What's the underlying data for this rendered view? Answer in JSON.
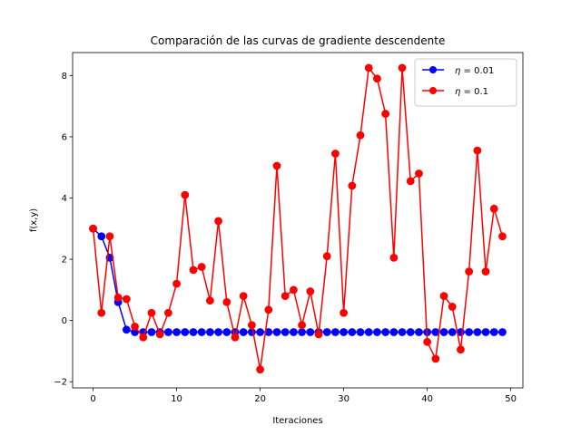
{
  "chart_data": {
    "type": "line",
    "title": "Comparación de las curvas de gradiente descendente",
    "xlabel": "Iteraciones",
    "ylabel": "f(x,y)",
    "xlim": [
      -2.45,
      51.45
    ],
    "ylim": [
      -2.2,
      8.75
    ],
    "xticks": [
      0,
      10,
      20,
      30,
      40,
      50
    ],
    "yticks": [
      -2,
      0,
      2,
      4,
      6,
      8
    ],
    "grid": false,
    "legend_position": "top-right",
    "series": [
      {
        "name": "η = 0.01",
        "legend_prefix": "η",
        "legend_suffix": " = 0.01",
        "color": "#0000ff",
        "x": [
          0,
          1,
          2,
          3,
          4,
          5,
          6,
          7,
          8,
          9,
          10,
          11,
          12,
          13,
          14,
          15,
          16,
          17,
          18,
          19,
          20,
          21,
          22,
          23,
          24,
          25,
          26,
          27,
          28,
          29,
          30,
          31,
          32,
          33,
          34,
          35,
          36,
          37,
          38,
          39,
          40,
          41,
          42,
          43,
          44,
          45,
          46,
          47,
          48,
          49
        ],
        "y": [
          3.0,
          2.75,
          2.05,
          0.6,
          -0.3,
          -0.38,
          -0.38,
          -0.38,
          -0.38,
          -0.38,
          -0.38,
          -0.38,
          -0.38,
          -0.38,
          -0.38,
          -0.38,
          -0.38,
          -0.38,
          -0.38,
          -0.38,
          -0.38,
          -0.38,
          -0.38,
          -0.38,
          -0.38,
          -0.38,
          -0.38,
          -0.38,
          -0.38,
          -0.38,
          -0.38,
          -0.38,
          -0.38,
          -0.38,
          -0.38,
          -0.38,
          -0.38,
          -0.38,
          -0.38,
          -0.38,
          -0.38,
          -0.38,
          -0.38,
          -0.38,
          -0.38,
          -0.38,
          -0.38,
          -0.38,
          -0.38,
          -0.38
        ]
      },
      {
        "name": "η = 0.1",
        "legend_prefix": "η",
        "legend_suffix": " = 0.1",
        "color": "#ff0000",
        "x": [
          0,
          1,
          2,
          3,
          4,
          5,
          6,
          7,
          8,
          9,
          10,
          11,
          12,
          13,
          14,
          15,
          16,
          17,
          18,
          19,
          20,
          21,
          22,
          23,
          24,
          25,
          26,
          27,
          28,
          29,
          30,
          31,
          32,
          33,
          34,
          35,
          36,
          37,
          38,
          39,
          40,
          41,
          42,
          43,
          44,
          45,
          46,
          47,
          48,
          49
        ],
        "y": [
          3.0,
          0.25,
          2.75,
          0.75,
          0.7,
          -0.2,
          -0.55,
          0.25,
          -0.45,
          0.25,
          1.2,
          4.1,
          1.65,
          1.75,
          0.65,
          3.25,
          0.6,
          -0.55,
          0.8,
          -0.15,
          -1.6,
          0.35,
          5.05,
          0.8,
          1.0,
          -0.15,
          0.95,
          -0.45,
          2.1,
          5.45,
          0.25,
          4.4,
          6.05,
          8.25,
          7.9,
          6.75,
          2.05,
          8.25,
          4.55,
          4.8,
          -0.7,
          -1.25,
          0.8,
          0.45,
          -0.95,
          1.6,
          5.55,
          1.6,
          3.65,
          2.75
        ]
      }
    ]
  }
}
